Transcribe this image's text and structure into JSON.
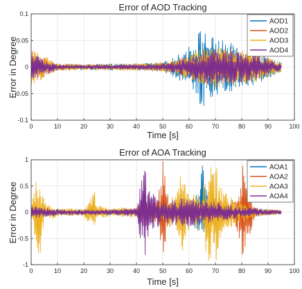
{
  "chart_data": [
    {
      "type": "line",
      "title": "Error of AOD Tracking",
      "xlabel": "Time [s]",
      "ylabel": "Error in Degree",
      "xlim": [
        0,
        100
      ],
      "ylim": [
        -0.1,
        0.1
      ],
      "xticks": [
        "0",
        "10",
        "20",
        "30",
        "40",
        "50",
        "60",
        "70",
        "80",
        "90",
        "100"
      ],
      "yticks": [
        "0.1",
        "0.05",
        "0",
        "-0.05",
        "-0.1"
      ],
      "grid": true,
      "legend_position": "top-right",
      "series": [
        {
          "name": "AOD1",
          "color": "#0072BD",
          "x": [
            0,
            10,
            20,
            30,
            40,
            50,
            55,
            60,
            63,
            65,
            67,
            70,
            73,
            76,
            80,
            85,
            90,
            95
          ],
          "y": [
            0.01,
            0.006,
            0.005,
            0.006,
            0.006,
            0.009,
            0.02,
            0.04,
            0.06,
            0.08,
            0.06,
            0.055,
            0.05,
            0.045,
            0.04,
            0.035,
            0.02,
            0.01
          ]
        },
        {
          "name": "AOD2",
          "color": "#D95319",
          "x": [
            0,
            10,
            20,
            30,
            40,
            50,
            55,
            60,
            65,
            70,
            75,
            80,
            85,
            90,
            95
          ],
          "y": [
            0.03,
            0.006,
            0.005,
            0.004,
            0.005,
            0.007,
            0.012,
            0.02,
            0.03,
            0.035,
            0.03,
            0.028,
            0.025,
            0.015,
            0.008
          ]
        },
        {
          "name": "AOD3",
          "color": "#EDB120",
          "x": [
            0,
            10,
            20,
            30,
            40,
            50,
            55,
            60,
            65,
            70,
            75,
            80,
            85,
            90,
            95
          ],
          "y": [
            0.035,
            0.007,
            0.006,
            0.006,
            0.007,
            0.009,
            0.015,
            0.025,
            0.035,
            0.04,
            0.035,
            0.032,
            0.03,
            0.02,
            0.01
          ]
        },
        {
          "name": "AOD4",
          "color": "#7E2F8E",
          "x": [
            0,
            10,
            20,
            30,
            40,
            50,
            55,
            60,
            65,
            70,
            75,
            80,
            85,
            90,
            95
          ],
          "y": [
            0.025,
            0.005,
            0.004,
            0.004,
            0.005,
            0.007,
            0.012,
            0.02,
            0.03,
            0.035,
            0.03,
            0.028,
            0.025,
            0.015,
            0.007
          ]
        }
      ]
    },
    {
      "type": "line",
      "title": "Error of AOA Tracking",
      "xlabel": "Time [s]",
      "ylabel": "Error in Degree",
      "xlim": [
        0,
        100
      ],
      "ylim": [
        -1,
        1
      ],
      "xticks": [
        "0",
        "10",
        "20",
        "30",
        "40",
        "50",
        "60",
        "70",
        "80",
        "90",
        "100"
      ],
      "yticks": [
        "1",
        "0.5",
        "0",
        "-0.5",
        "-1"
      ],
      "grid": true,
      "legend_position": "top-right",
      "series": [
        {
          "name": "AOA1",
          "color": "#0072BD",
          "x": [
            0,
            10,
            20,
            30,
            40,
            50,
            55,
            60,
            62,
            64,
            65,
            66,
            68,
            70,
            75,
            80,
            85,
            90,
            95
          ],
          "y": [
            0.1,
            0.06,
            0.05,
            0.05,
            0.06,
            0.08,
            0.1,
            0.15,
            0.3,
            0.5,
            1.0,
            0.5,
            0.3,
            0.15,
            0.1,
            0.08,
            0.06,
            0.05,
            0.04
          ]
        },
        {
          "name": "AOA2",
          "color": "#D95319",
          "x": [
            0,
            10,
            20,
            30,
            40,
            45,
            48,
            50,
            52,
            55,
            58,
            60,
            65,
            70,
            75,
            78,
            80,
            85,
            90,
            95
          ],
          "y": [
            0.05,
            0.05,
            0.04,
            0.05,
            0.06,
            0.1,
            0.25,
            1.0,
            0.3,
            0.2,
            0.3,
            0.2,
            0.15,
            0.3,
            0.2,
            0.3,
            1.0,
            0.08,
            0.05,
            0.04
          ]
        },
        {
          "name": "AOA3",
          "color": "#EDB120",
          "x": [
            0,
            3,
            5,
            10,
            20,
            24,
            25,
            30,
            40,
            45,
            50,
            55,
            57,
            60,
            65,
            67,
            70,
            72,
            75,
            80,
            85,
            90,
            95
          ],
          "y": [
            0.1,
            1.0,
            0.2,
            0.08,
            0.08,
            0.5,
            0.15,
            0.08,
            0.1,
            0.2,
            0.25,
            0.3,
            1.0,
            0.3,
            0.4,
            1.0,
            1.0,
            0.5,
            0.3,
            0.2,
            0.1,
            0.06,
            0.05
          ]
        },
        {
          "name": "AOA4",
          "color": "#7E2F8E",
          "x": [
            0,
            10,
            20,
            30,
            40,
            43,
            45,
            50,
            55,
            60,
            65,
            70,
            75,
            80,
            85,
            90,
            95
          ],
          "y": [
            0.12,
            0.06,
            0.05,
            0.05,
            0.08,
            1.0,
            0.4,
            0.2,
            0.25,
            0.3,
            0.25,
            0.2,
            0.15,
            0.1,
            0.08,
            0.05,
            0.04
          ]
        }
      ]
    }
  ]
}
